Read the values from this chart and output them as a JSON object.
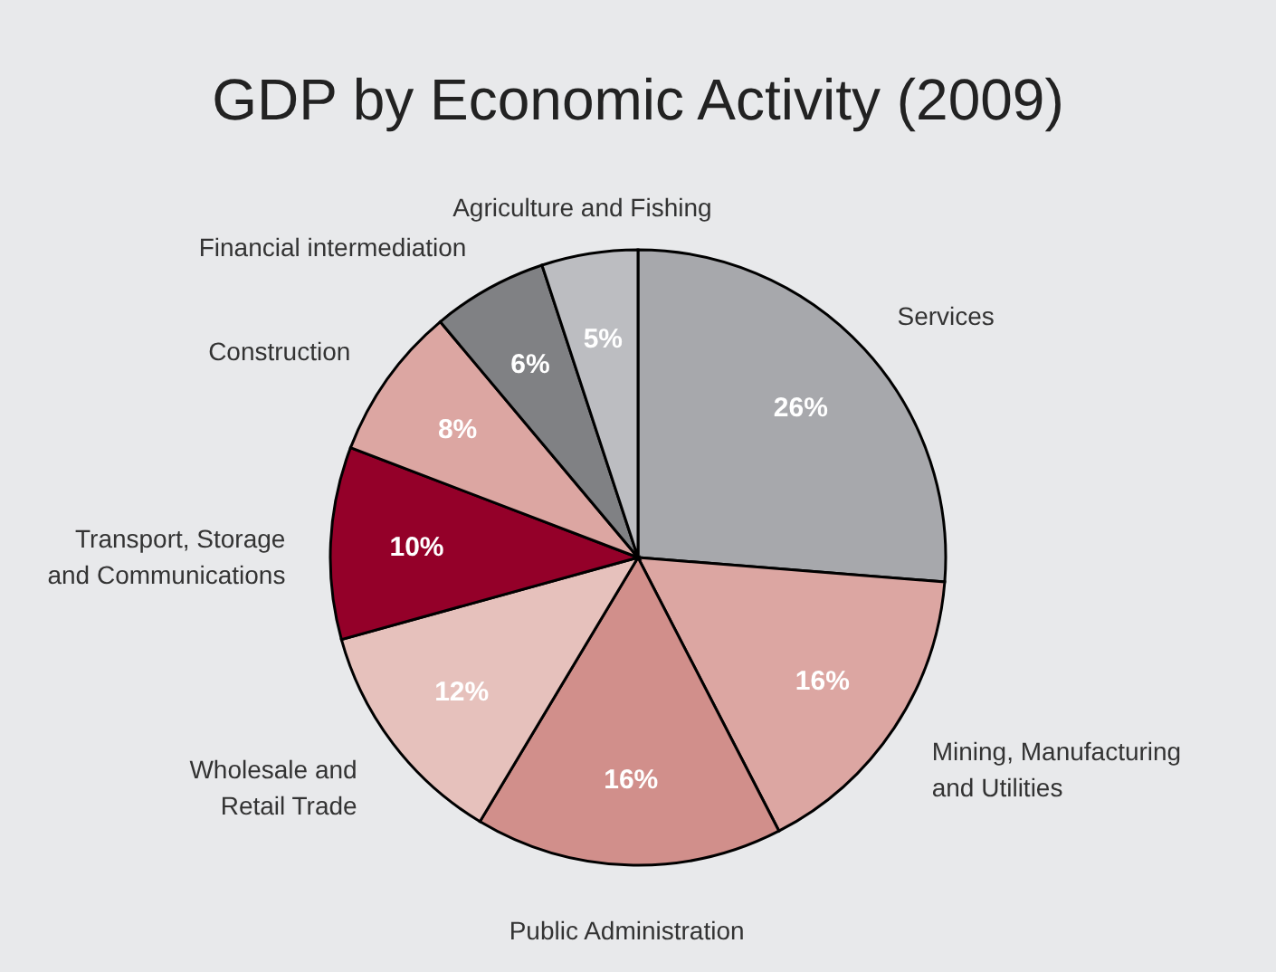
{
  "chart_data": {
    "type": "pie",
    "title": "GDP by Economic Activity (2009)",
    "categories": [
      "Services",
      "Mining, Manufacturing and Utilities",
      "Public Administration",
      "Wholesale and Retail Trade",
      "Transport, Storage and Communications",
      "Construction",
      "Financial intermediation",
      "Agriculture and Fishing"
    ],
    "values": [
      26,
      16,
      16,
      12,
      10,
      8,
      6,
      5
    ],
    "value_labels": [
      "26%",
      "16%",
      "16%",
      "12%",
      "10%",
      "8%",
      "6%",
      "5%"
    ],
    "colors": [
      "#a7a8ac",
      "#dca6a2",
      "#d18f8b",
      "#e6c1bc",
      "#940029",
      "#dca6a2",
      "#808184",
      "#bcbdc1"
    ],
    "legend": false
  }
}
